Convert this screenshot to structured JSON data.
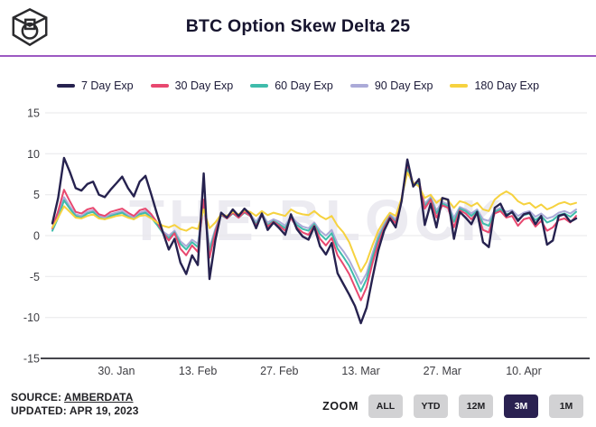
{
  "header": {
    "title": "BTC Option Skew Delta 25"
  },
  "watermark": "THE BLOCK",
  "colors": {
    "accent_rule": "#9c59c2",
    "grid": "#e7e7ea",
    "axis": "#46464c",
    "tick_text": "#3d3d42",
    "watermark": "#ecebf1",
    "button_bg": "#d2d2d4",
    "button_active_bg": "#2a2151",
    "button_active_text": "#ffffff"
  },
  "chart_data": {
    "type": "line",
    "title": "BTC Option Skew Delta 25",
    "xlabel": "",
    "ylabel": "",
    "ylim": [
      -15,
      15
    ],
    "yticks": [
      15,
      10,
      5,
      0,
      -5,
      -10,
      -15
    ],
    "grid": "horizontal",
    "legend_position": "top",
    "x_unit": "days since Jan 19, 2023 (3M window ending Apr 19, 2023)",
    "x_tick_labels": [
      "30. Jan",
      "13. Feb",
      "27. Feb",
      "13. Mar",
      "27. Mar",
      "10. Apr"
    ],
    "x_tick_positions_days": [
      11,
      25,
      39,
      53,
      67,
      81
    ],
    "series": [
      {
        "name": "7 Day Exp",
        "color": "#26224f",
        "values": [
          1.5,
          4.6,
          9.5,
          7.8,
          5.8,
          5.5,
          6.3,
          6.6,
          5.0,
          4.7,
          5.6,
          6.4,
          7.2,
          5.8,
          4.8,
          6.6,
          7.3,
          5.0,
          2.6,
          0.4,
          -1.7,
          -0.4,
          -3.3,
          -4.7,
          -2.4,
          -3.6,
          7.6,
          -5.3,
          -0.6,
          2.8,
          2.2,
          3.2,
          2.4,
          3.3,
          2.6,
          0.9,
          2.7,
          0.7,
          1.6,
          0.9,
          0.1,
          2.6,
          0.8,
          -0.1,
          -0.5,
          1.1,
          -1.3,
          -2.3,
          -0.9,
          -4.6,
          -5.9,
          -7.2,
          -8.6,
          -10.7,
          -8.8,
          -5.2,
          -1.8,
          0.6,
          2.1,
          1.0,
          4.2,
          9.3,
          6.0,
          6.9,
          1.3,
          3.9,
          1.0,
          4.6,
          4.4,
          -0.4,
          2.9,
          2.2,
          1.4,
          2.9,
          -0.8,
          -1.4,
          3.4,
          3.9,
          2.4,
          2.9,
          1.8,
          2.6,
          2.8,
          1.4,
          2.4,
          -1.1,
          -0.6,
          2.4,
          2.6,
          1.7,
          2.1
        ]
      },
      {
        "name": "30 Day Exp",
        "color": "#e8486f",
        "values": [
          0.9,
          3.0,
          5.6,
          4.2,
          2.9,
          2.7,
          3.2,
          3.4,
          2.6,
          2.4,
          2.9,
          3.1,
          3.3,
          2.8,
          2.4,
          3.1,
          3.3,
          2.6,
          1.6,
          0.4,
          -0.6,
          0.3,
          -1.6,
          -2.4,
          -1.2,
          -2.0,
          4.4,
          -2.7,
          0.4,
          2.6,
          2.1,
          2.8,
          2.2,
          2.9,
          2.4,
          1.2,
          2.5,
          1.1,
          1.7,
          1.2,
          0.6,
          2.2,
          1.0,
          0.4,
          0.1,
          1.2,
          -0.4,
          -1.2,
          -0.3,
          -2.4,
          -3.5,
          -4.7,
          -6.3,
          -7.9,
          -6.3,
          -3.4,
          -0.9,
          0.9,
          2.3,
          1.5,
          4.5,
          8.8,
          6.3,
          6.7,
          3.3,
          4.4,
          2.2,
          3.7,
          3.4,
          1.0,
          3.1,
          2.7,
          2.0,
          2.8,
          0.7,
          0.4,
          2.7,
          3.0,
          2.2,
          2.4,
          1.2,
          2.0,
          2.2,
          1.1,
          1.8,
          0.6,
          1.0,
          1.9,
          2.1,
          1.6,
          2.4
        ]
      },
      {
        "name": "60 Day Exp",
        "color": "#3fbcab",
        "values": [
          0.6,
          2.2,
          4.3,
          3.3,
          2.4,
          2.2,
          2.7,
          2.9,
          2.2,
          2.0,
          2.4,
          2.6,
          2.8,
          2.3,
          2.0,
          2.6,
          2.8,
          2.2,
          1.3,
          0.3,
          -0.3,
          0.4,
          -1.0,
          -1.7,
          -0.8,
          -1.4,
          3.9,
          -1.9,
          0.6,
          2.5,
          2.1,
          2.7,
          2.2,
          2.8,
          2.4,
          1.4,
          2.5,
          1.3,
          1.8,
          1.4,
          0.9,
          2.2,
          1.3,
          0.8,
          0.6,
          1.4,
          0.2,
          -0.5,
          0.3,
          -1.6,
          -2.6,
          -3.7,
          -5.2,
          -6.8,
          -5.3,
          -2.7,
          -0.4,
          1.1,
          2.4,
          1.7,
          4.4,
          8.2,
          6.1,
          6.4,
          3.6,
          4.5,
          2.7,
          3.9,
          3.6,
          1.7,
          3.3,
          3.0,
          2.4,
          3.0,
          1.5,
          1.2,
          2.9,
          3.2,
          2.6,
          2.8,
          2.0,
          2.5,
          2.7,
          1.9,
          2.4,
          1.6,
          1.9,
          2.5,
          2.7,
          2.3,
          2.9
        ]
      },
      {
        "name": "90 Day Exp",
        "color": "#abaad8",
        "values": [
          0.8,
          2.5,
          4.7,
          3.6,
          2.6,
          2.4,
          2.9,
          3.1,
          2.4,
          2.2,
          2.6,
          2.8,
          3.0,
          2.5,
          2.2,
          2.8,
          3.0,
          2.4,
          1.5,
          0.5,
          0.0,
          0.6,
          -0.7,
          -1.3,
          -0.5,
          -1.0,
          4.1,
          -1.5,
          0.8,
          2.7,
          2.3,
          2.9,
          2.4,
          3.0,
          2.6,
          1.7,
          2.7,
          1.6,
          2.0,
          1.7,
          1.2,
          2.4,
          1.6,
          1.1,
          0.9,
          1.6,
          0.6,
          0.0,
          0.7,
          -1.0,
          -1.9,
          -3.0,
          -4.4,
          -5.9,
          -4.6,
          -2.2,
          0.0,
          1.4,
          2.6,
          2.0,
          4.5,
          7.9,
          6.2,
          6.3,
          3.9,
          4.7,
          3.1,
          4.1,
          3.8,
          2.2,
          3.5,
          3.2,
          2.7,
          3.2,
          2.0,
          1.8,
          3.1,
          3.4,
          2.9,
          3.1,
          2.4,
          2.8,
          3.0,
          2.3,
          2.7,
          2.1,
          2.3,
          2.8,
          3.0,
          2.7,
          3.2
        ]
      },
      {
        "name": "180 Day Exp",
        "color": "#f6d23f",
        "values": [
          1.0,
          2.2,
          3.6,
          2.9,
          2.2,
          2.1,
          2.4,
          2.6,
          2.1,
          2.0,
          2.2,
          2.4,
          2.5,
          2.2,
          2.0,
          2.4,
          2.5,
          2.1,
          1.6,
          1.2,
          1.0,
          1.3,
          0.8,
          0.6,
          1.0,
          0.8,
          3.2,
          0.9,
          1.6,
          2.6,
          2.4,
          2.9,
          2.6,
          3.1,
          2.9,
          2.4,
          3.0,
          2.5,
          2.8,
          2.6,
          2.4,
          3.2,
          2.8,
          2.6,
          2.5,
          3.0,
          2.4,
          2.0,
          2.4,
          1.2,
          0.4,
          -0.8,
          -2.6,
          -4.4,
          -3.2,
          -1.2,
          0.6,
          1.8,
          2.8,
          2.4,
          4.6,
          7.7,
          6.5,
          6.0,
          4.6,
          5.0,
          4.0,
          4.6,
          4.3,
          3.4,
          4.2,
          4.0,
          3.6,
          4.0,
          3.2,
          3.0,
          4.4,
          5.0,
          5.4,
          5.0,
          4.2,
          3.8,
          4.0,
          3.4,
          3.8,
          3.2,
          3.5,
          3.9,
          4.1,
          3.8,
          4.0
        ]
      }
    ]
  },
  "footer": {
    "source_label": "SOURCE:",
    "source_value": "AMBERDATA",
    "updated": "UPDATED: APR 19, 2023",
    "zoom_label": "ZOOM",
    "zoom_buttons": [
      {
        "label": "ALL",
        "active": false
      },
      {
        "label": "YTD",
        "active": false
      },
      {
        "label": "12M",
        "active": false
      },
      {
        "label": "3M",
        "active": true
      },
      {
        "label": "1M",
        "active": false
      }
    ]
  }
}
